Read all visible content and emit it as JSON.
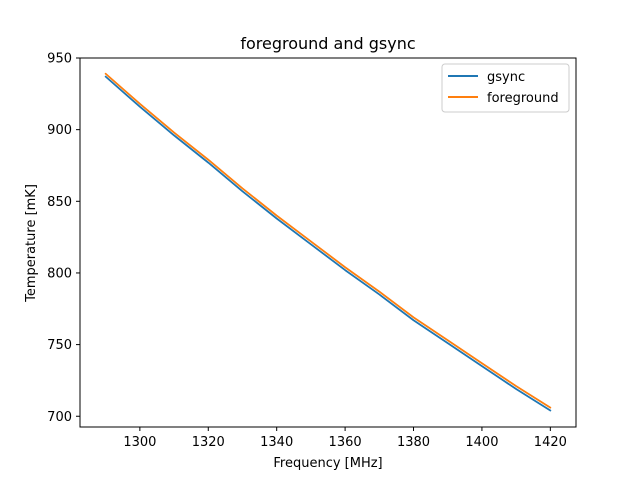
{
  "chart_data": {
    "type": "line",
    "title": "foreground and gsync",
    "xlabel": "Frequency [MHz]",
    "ylabel": "Temperature [mK]",
    "xlim": [
      1282.5,
      1427.5
    ],
    "ylim": [
      692.5,
      950
    ],
    "xticks": [
      1300,
      1320,
      1340,
      1360,
      1380,
      1400,
      1420
    ],
    "yticks": [
      700,
      750,
      800,
      850,
      900,
      950
    ],
    "grid": false,
    "legend_position": "upper right",
    "x": [
      1290,
      1300,
      1310,
      1320,
      1330,
      1340,
      1350,
      1360,
      1370,
      1380,
      1390,
      1400,
      1410,
      1420
    ],
    "series": [
      {
        "name": "gsync",
        "color": "#1f77b4",
        "values": [
          937,
          916,
          896,
          877,
          857,
          838,
          820,
          802,
          785,
          767,
          751,
          735,
          719,
          704
        ]
      },
      {
        "name": "foreground",
        "color": "#ff7f0e",
        "values": [
          939,
          918,
          898,
          879,
          859,
          840,
          822,
          804,
          787,
          769,
          753,
          737,
          721,
          706
        ]
      }
    ]
  }
}
